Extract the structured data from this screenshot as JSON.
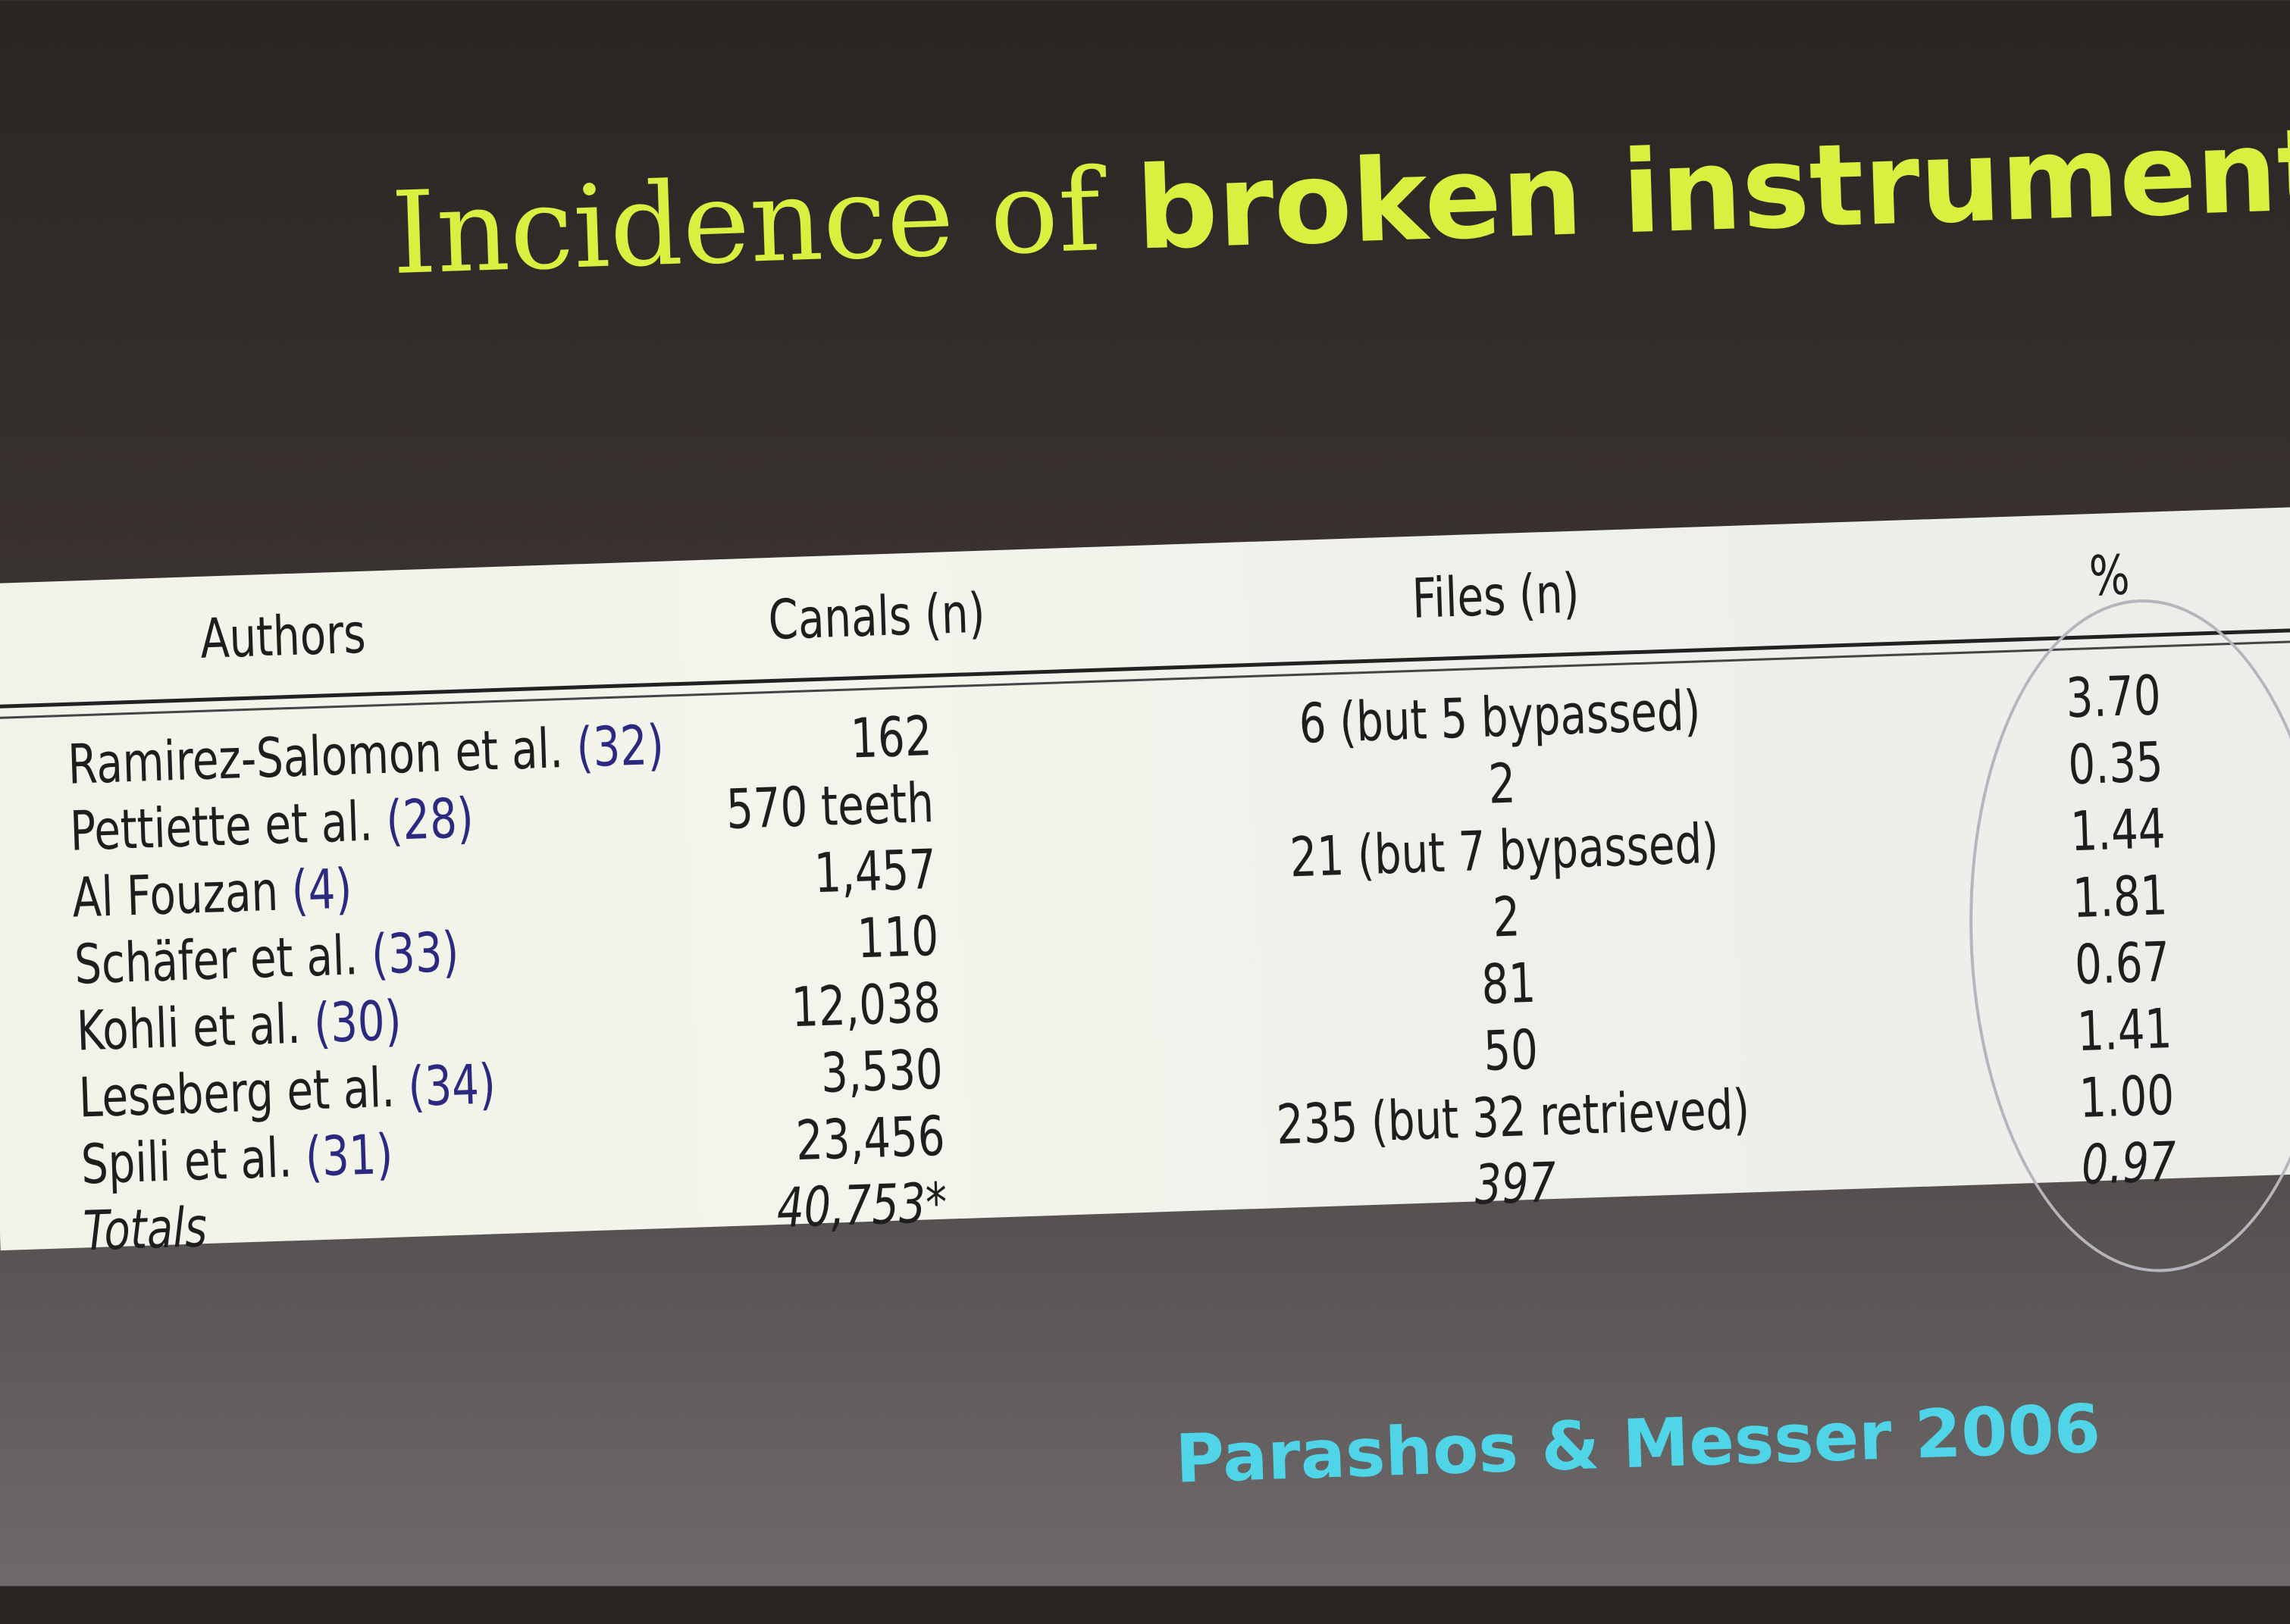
{
  "slide": {
    "title_part1": "Incidence of",
    "title_part2": "broken instrument",
    "citation": "Parashos & Messer 2006",
    "colors": {
      "title": "#d8f040",
      "citation": "#4fd4e8",
      "reference": "#2b2a80"
    }
  },
  "table": {
    "headers": {
      "authors": "Authors",
      "canals": "Canals (n)",
      "files": "Files (n)",
      "percent": "%"
    },
    "rows": [
      {
        "author": "Ramirez-Salomon et al.",
        "ref": "(32)",
        "canals": "162",
        "files": "6 (but 5 bypassed)",
        "percent": "3.70"
      },
      {
        "author": "Pettiette et al.",
        "ref": "(28)",
        "canals": "570 teeth",
        "files": "2",
        "percent": "0.35"
      },
      {
        "author": "Al Fouzan",
        "ref": "(4)",
        "canals": "1,457",
        "files": "21 (but 7 bypassed)",
        "percent": "1.44"
      },
      {
        "author": "Schäfer et al.",
        "ref": "(33)",
        "canals": "110",
        "files": "2",
        "percent": "1.81"
      },
      {
        "author": "Kohli et al.",
        "ref": "(30)",
        "canals": "12,038",
        "files": "81",
        "percent": "0.67"
      },
      {
        "author": "Leseberg et al.",
        "ref": "(34)",
        "canals": "3,530",
        "files": "50",
        "percent": "1.41"
      },
      {
        "author": "Spili et al.",
        "ref": "(31)",
        "canals": "23,456",
        "files": "235 (but 32 retrieved)",
        "percent": "1.00"
      }
    ],
    "totals": {
      "label": "Totals",
      "canals": "40,753*",
      "files": "397",
      "percent": "0.97"
    }
  }
}
